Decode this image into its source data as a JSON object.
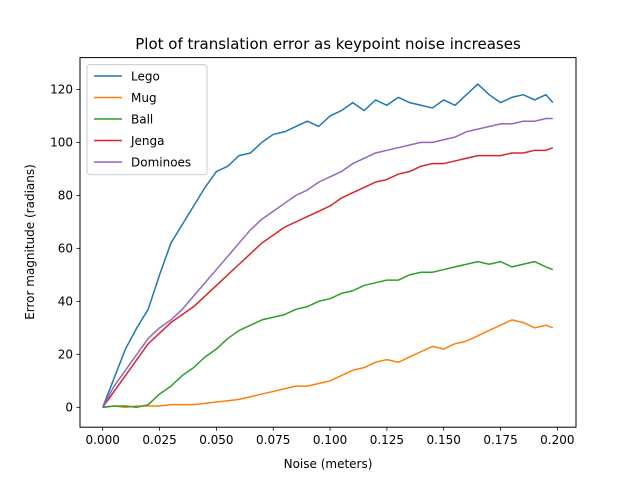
{
  "chart_data": {
    "type": "line",
    "title": "Plot of translation error as keypoint noise increases",
    "xlabel": "Noise (meters)",
    "ylabel": "Error magnitude (radians)",
    "xlim": [
      -0.01,
      0.2082
    ],
    "ylim": [
      -7.5,
      132
    ],
    "xticks": [
      0.0,
      0.025,
      0.05,
      0.075,
      0.1,
      0.125,
      0.15,
      0.175,
      0.2
    ],
    "xtick_labels": [
      "0.000",
      "0.025",
      "0.050",
      "0.075",
      "0.100",
      "0.125",
      "0.150",
      "0.175",
      "0.200"
    ],
    "yticks": [
      0,
      20,
      40,
      60,
      80,
      100,
      120
    ],
    "ytick_labels": [
      "0",
      "20",
      "40",
      "60",
      "80",
      "100",
      "120"
    ],
    "grid": false,
    "legend_position": "top-left",
    "x": [
      0.0,
      0.005,
      0.01,
      0.015,
      0.02,
      0.025,
      0.03,
      0.035,
      0.04,
      0.045,
      0.05,
      0.055,
      0.06,
      0.065,
      0.07,
      0.075,
      0.08,
      0.085,
      0.09,
      0.095,
      0.1,
      0.105,
      0.11,
      0.115,
      0.12,
      0.125,
      0.13,
      0.135,
      0.14,
      0.145,
      0.15,
      0.155,
      0.16,
      0.165,
      0.17,
      0.175,
      0.18,
      0.185,
      0.19,
      0.195,
      0.198
    ],
    "series": [
      {
        "name": "Lego",
        "color": "#1f77b4",
        "values": [
          0,
          11,
          22,
          30,
          37,
          50,
          62,
          69,
          76,
          83,
          89,
          91,
          95,
          96,
          100,
          103,
          104,
          106,
          108,
          106,
          110,
          112,
          115,
          112,
          116,
          114,
          117,
          115,
          114,
          113,
          116,
          114,
          118,
          122,
          118,
          115,
          117,
          118,
          116,
          118,
          115
        ]
      },
      {
        "name": "Mug",
        "color": "#ff7f0e",
        "values": [
          0,
          0.5,
          0,
          0.5,
          0.5,
          0.5,
          1,
          1,
          1,
          1.5,
          2,
          2.5,
          3,
          4,
          5,
          6,
          7,
          8,
          8,
          9,
          10,
          12,
          14,
          15,
          17,
          18,
          17,
          19,
          21,
          23,
          22,
          24,
          25,
          27,
          29,
          31,
          33,
          32,
          30,
          31,
          30
        ]
      },
      {
        "name": "Ball",
        "color": "#2ca02c",
        "values": [
          0,
          0.5,
          0.5,
          0,
          1,
          5,
          8,
          12,
          15,
          19,
          22,
          26,
          29,
          31,
          33,
          34,
          35,
          37,
          38,
          40,
          41,
          43,
          44,
          46,
          47,
          48,
          48,
          50,
          51,
          51,
          52,
          53,
          54,
          55,
          54,
          55,
          53,
          54,
          55,
          53,
          52
        ]
      },
      {
        "name": "Jenga",
        "color": "#d62728",
        "values": [
          0,
          6,
          12,
          18,
          24,
          28,
          32,
          35,
          38,
          42,
          46,
          50,
          54,
          58,
          62,
          65,
          68,
          70,
          72,
          74,
          76,
          79,
          81,
          83,
          85,
          86,
          88,
          89,
          91,
          92,
          92,
          93,
          94,
          95,
          95,
          95,
          96,
          96,
          97,
          97,
          98
        ]
      },
      {
        "name": "Dominoes",
        "color": "#9467bd",
        "values": [
          0,
          8,
          14,
          20,
          26,
          30,
          33,
          37,
          42,
          47,
          52,
          57,
          62,
          67,
          71,
          74,
          77,
          80,
          82,
          85,
          87,
          89,
          92,
          94,
          96,
          97,
          98,
          99,
          100,
          100,
          101,
          102,
          104,
          105,
          106,
          107,
          107,
          108,
          108,
          109,
          109
        ]
      }
    ]
  }
}
